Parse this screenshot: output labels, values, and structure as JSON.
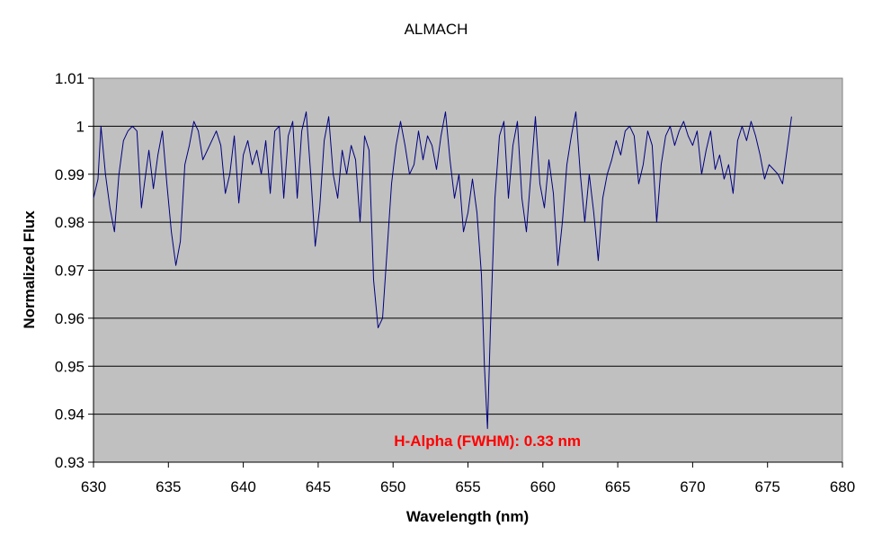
{
  "chart_data": {
    "type": "line",
    "title": "ALMACH",
    "xlabel": "Wavelength (nm)",
    "ylabel": "Normalized Flux",
    "xlim": [
      630,
      680
    ],
    "ylim": [
      0.93,
      1.01
    ],
    "x_ticks": [
      630,
      635,
      640,
      645,
      650,
      655,
      660,
      665,
      670,
      675,
      680
    ],
    "y_ticks": [
      0.93,
      0.94,
      0.95,
      0.96,
      0.97,
      0.98,
      0.99,
      1.0,
      1.01
    ],
    "x_tick_labels": [
      "630",
      "635",
      "640",
      "645",
      "650",
      "655",
      "660",
      "665",
      "670",
      "675",
      "680"
    ],
    "y_tick_labels": [
      "0.93",
      "0.94",
      "0.95",
      "0.96",
      "0.97",
      "0.98",
      "0.99",
      "1",
      "1.01"
    ],
    "grid": "horizontal",
    "plot_background": "#c0c0c0",
    "line_color": "#000080",
    "annotation": {
      "text": "H-Alpha (FWHM): 0.33 nm",
      "color": "#ff0000",
      "x": 656.3,
      "y": 0.9345
    },
    "series": [
      {
        "x": [
          630.0,
          630.3,
          630.5,
          630.8,
          631.1,
          631.4,
          631.7,
          632.0,
          632.3,
          632.6,
          632.9,
          633.2,
          633.4,
          633.7,
          634.0,
          634.3,
          634.6,
          634.9,
          635.2,
          635.5,
          635.8,
          636.1,
          636.4,
          636.7,
          637.0,
          637.3,
          637.6,
          637.9,
          638.2,
          638.5,
          638.8,
          639.1,
          639.4,
          639.7,
          640.0,
          640.3,
          640.6,
          640.9,
          641.2,
          641.5,
          641.8,
          642.1,
          642.4,
          642.7,
          643.0,
          643.3,
          643.6,
          643.9,
          644.2,
          644.5,
          644.8,
          645.1,
          645.4,
          645.7,
          646.0,
          646.3,
          646.6,
          646.9,
          647.2,
          647.5,
          647.8,
          648.1,
          648.4,
          648.7,
          649.0,
          649.3,
          649.6,
          649.9,
          650.2,
          650.5,
          650.8,
          651.1,
          651.4,
          651.7,
          652.0,
          652.3,
          652.6,
          652.9,
          653.2,
          653.5,
          653.8,
          654.1,
          654.4,
          654.7,
          655.0,
          655.3,
          655.6,
          655.9,
          656.1,
          656.3,
          656.5,
          656.8,
          657.1,
          657.4,
          657.7,
          658.0,
          658.3,
          658.6,
          658.9,
          659.2,
          659.5,
          659.8,
          660.1,
          660.4,
          660.7,
          661.0,
          661.3,
          661.6,
          661.9,
          662.2,
          662.5,
          662.8,
          663.1,
          663.4,
          663.7,
          664.0,
          664.3,
          664.6,
          664.9,
          665.2,
          665.5,
          665.8,
          666.1,
          666.4,
          666.7,
          667.0,
          667.3,
          667.6,
          667.9,
          668.2,
          668.5,
          668.8,
          669.1,
          669.4,
          669.7,
          670.0,
          670.3,
          670.6,
          670.9,
          671.2,
          671.5,
          671.8,
          672.1,
          672.4,
          672.7,
          673.0,
          673.3,
          673.6,
          673.9,
          674.2,
          674.5,
          674.8,
          675.1,
          675.4,
          675.7,
          676.0,
          676.3,
          676.6
        ],
        "y": [
          0.985,
          0.989,
          1.0,
          0.99,
          0.983,
          0.978,
          0.99,
          0.997,
          0.999,
          1.0,
          0.999,
          0.983,
          0.988,
          0.995,
          0.987,
          0.994,
          0.999,
          0.988,
          0.978,
          0.971,
          0.976,
          0.992,
          0.996,
          1.001,
          0.999,
          0.993,
          0.995,
          0.997,
          0.999,
          0.996,
          0.986,
          0.99,
          0.998,
          0.984,
          0.994,
          0.997,
          0.992,
          0.995,
          0.99,
          0.997,
          0.986,
          0.999,
          1.0,
          0.985,
          0.998,
          1.001,
          0.985,
          0.999,
          1.003,
          0.99,
          0.975,
          0.983,
          0.997,
          1.002,
          0.99,
          0.985,
          0.995,
          0.99,
          0.996,
          0.993,
          0.98,
          0.998,
          0.995,
          0.968,
          0.958,
          0.96,
          0.974,
          0.988,
          0.996,
          1.001,
          0.996,
          0.99,
          0.992,
          0.999,
          0.993,
          0.998,
          0.996,
          0.991,
          0.998,
          1.003,
          0.993,
          0.985,
          0.99,
          0.978,
          0.982,
          0.989,
          0.982,
          0.969,
          0.95,
          0.937,
          0.958,
          0.985,
          0.998,
          1.001,
          0.985,
          0.996,
          1.001,
          0.985,
          0.978,
          0.99,
          1.002,
          0.988,
          0.983,
          0.993,
          0.986,
          0.971,
          0.98,
          0.992,
          0.998,
          1.003,
          0.99,
          0.98,
          0.99,
          0.982,
          0.972,
          0.985,
          0.99,
          0.993,
          0.997,
          0.994,
          0.999,
          1.0,
          0.998,
          0.988,
          0.992,
          0.999,
          0.996,
          0.98,
          0.992,
          0.998,
          1.0,
          0.996,
          0.999,
          1.001,
          0.998,
          0.996,
          0.999,
          0.99,
          0.995,
          0.999,
          0.991,
          0.994,
          0.989,
          0.992,
          0.986,
          0.997,
          1.0,
          0.997,
          1.001,
          0.998,
          0.994,
          0.989,
          0.992,
          0.991,
          0.99,
          0.988,
          0.995,
          1.002
        ]
      }
    ]
  }
}
